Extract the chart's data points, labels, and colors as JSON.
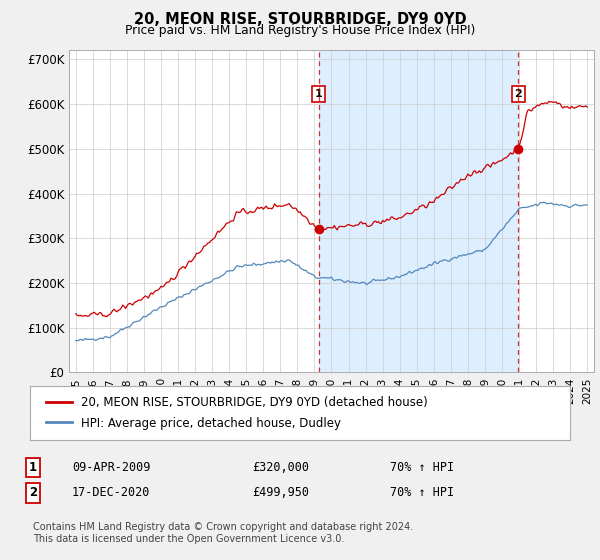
{
  "title": "20, MEON RISE, STOURBRIDGE, DY9 0YD",
  "subtitle": "Price paid vs. HM Land Registry's House Price Index (HPI)",
  "red_label": "20, MEON RISE, STOURBRIDGE, DY9 0YD (detached house)",
  "blue_label": "HPI: Average price, detached house, Dudley",
  "sale1_date": "09-APR-2009",
  "sale1_price": 320000,
  "sale1_hpi": "70% ↑ HPI",
  "sale2_date": "17-DEC-2020",
  "sale2_price": 499950,
  "sale2_hpi": "70% ↑ HPI",
  "footer": "Contains HM Land Registry data © Crown copyright and database right 2024.\nThis data is licensed under the Open Government Licence v3.0.",
  "ylim": [
    0,
    720000
  ],
  "yticks": [
    0,
    100000,
    200000,
    300000,
    400000,
    500000,
    600000,
    700000
  ],
  "ytick_labels": [
    "£0",
    "£100K",
    "£200K",
    "£300K",
    "£400K",
    "£500K",
    "£600K",
    "£700K"
  ],
  "red_color": "#cc0000",
  "blue_color": "#5588bb",
  "shade_color": "#ddeeff",
  "vline1_x": 2009.25,
  "vline2_x": 2020.96,
  "marker1_year": 2009.25,
  "marker1_red_y": 320000,
  "marker2_year": 2020.96,
  "marker2_red_y": 499950,
  "background_color": "#f0f0f0",
  "plot_bg_color": "#ffffff",
  "xlim_left": 1994.6,
  "xlim_right": 2025.4
}
